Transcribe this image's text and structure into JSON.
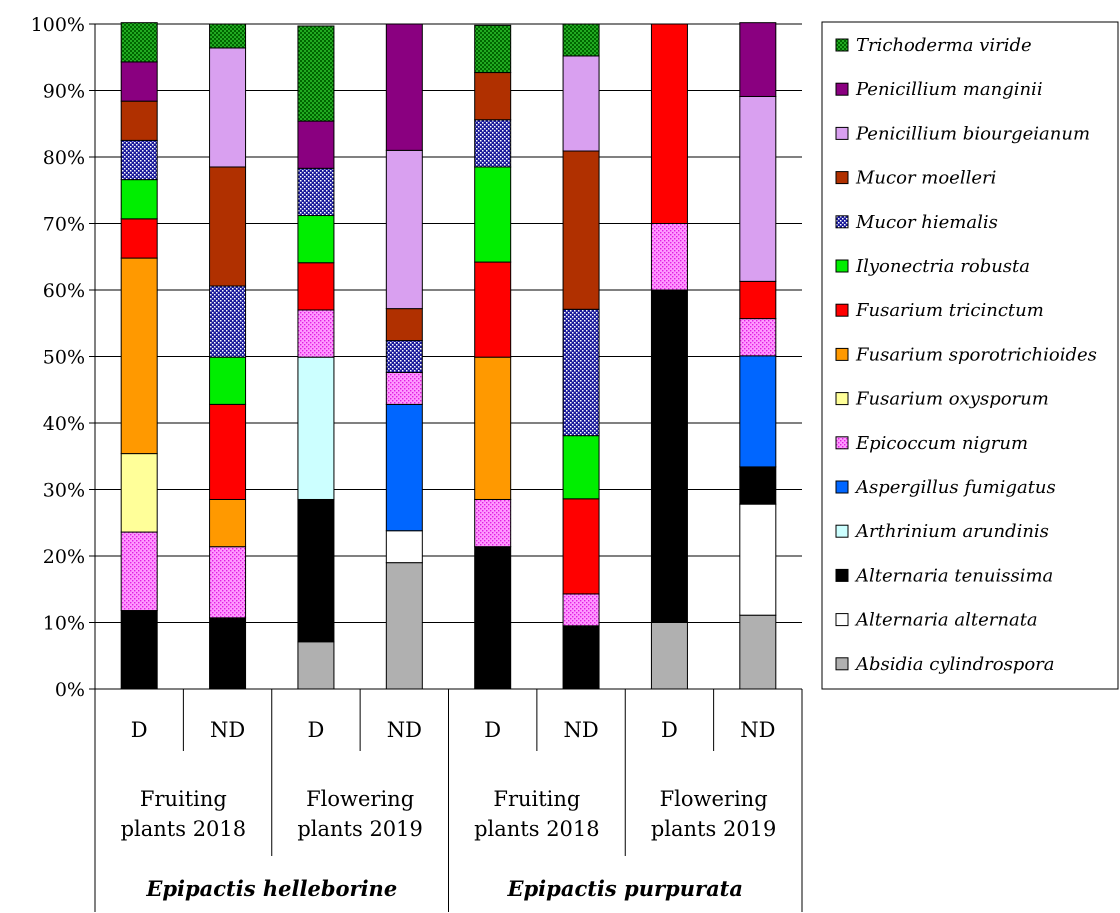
{
  "chart_data": {
    "type": "bar",
    "stacked": true,
    "percent": true,
    "ylim": [
      0,
      100
    ],
    "y_ticks": [
      "0%",
      "10%",
      "20%",
      "30%",
      "40%",
      "50%",
      "60%",
      "70%",
      "80%",
      "90%",
      "100%"
    ],
    "grid": true,
    "legend_position": "right",
    "categories": [
      "D",
      "ND",
      "D",
      "ND",
      "D",
      "ND",
      "D",
      "ND"
    ],
    "groups": [
      {
        "label_line1": "Fruiting",
        "label_line2": "plants 2018"
      },
      {
        "label_line1": "Flowering",
        "label_line2": "plants 2019"
      },
      {
        "label_line1": "Fruiting",
        "label_line2": "plants 2018"
      },
      {
        "label_line1": "Flowering",
        "label_line2": "plants 2019"
      }
    ],
    "species": [
      "Epipactis helleborine",
      "Epipactis purpurata"
    ],
    "series": [
      {
        "name": "Absidia cylindrospora",
        "color": "#b0b0b0",
        "pattern": "solid",
        "values": [
          0,
          0,
          7.1,
          19.0,
          0,
          0,
          10,
          11.1
        ]
      },
      {
        "name": "Alternaria  alternata",
        "color": "#ffffff",
        "pattern": "solid",
        "values": [
          0,
          0,
          0,
          4.8,
          0,
          0,
          0,
          16.7
        ]
      },
      {
        "name": "Alternaria  tenuissima",
        "color": "#000000",
        "pattern": "solid",
        "values": [
          11.8,
          10.7,
          21.4,
          0,
          21.4,
          9.5,
          50,
          5.6
        ]
      },
      {
        "name": "Arthrinium arundinis",
        "color": "#ccffff",
        "pattern": "solid",
        "values": [
          0,
          0,
          21.4,
          0,
          0,
          0,
          0,
          0
        ]
      },
      {
        "name": "Aspergillus fumigatus",
        "color": "#0066ff",
        "pattern": "solid",
        "values": [
          0,
          0,
          0,
          19.0,
          0,
          0,
          0,
          16.7
        ]
      },
      {
        "name": "Epicoccum nigrum",
        "color": "#ff66ff",
        "pattern": "dots",
        "values": [
          11.8,
          10.7,
          7.1,
          4.8,
          7.1,
          4.8,
          10,
          5.6
        ]
      },
      {
        "name": "Fusarium oxysporum",
        "color": "#ffff99",
        "pattern": "solid",
        "values": [
          11.8,
          0,
          0,
          0,
          0,
          0,
          0,
          0
        ]
      },
      {
        "name": "Fusarium  sporotrichioides",
        "color": "#ff9900",
        "pattern": "solid",
        "values": [
          29.4,
          7.1,
          0,
          0,
          21.4,
          0,
          0,
          0
        ]
      },
      {
        "name": "Fusarium tricinctum",
        "color": "#ff0000",
        "pattern": "solid",
        "values": [
          5.9,
          14.3,
          7.1,
          0,
          14.3,
          14.3,
          30,
          5.6
        ]
      },
      {
        "name": "Ilyonectria robusta",
        "color": "#00ee00",
        "pattern": "solid",
        "values": [
          5.9,
          7.1,
          7.1,
          0,
          14.3,
          9.5,
          0,
          0
        ]
      },
      {
        "name": "Mucor hiemalis",
        "color": "#1a1aa0",
        "pattern": "dense",
        "values": [
          5.9,
          10.7,
          7.1,
          4.8,
          7.1,
          19.0,
          0,
          0
        ]
      },
      {
        "name": "Mucor moelleri",
        "color": "#b03000",
        "pattern": "solid",
        "values": [
          5.9,
          17.9,
          0,
          4.8,
          7.1,
          23.8,
          0,
          0
        ]
      },
      {
        "name": "Penicillium biourgeianum",
        "color": "#d9a0f0",
        "pattern": "solid",
        "values": [
          0,
          17.9,
          0,
          23.8,
          0,
          14.3,
          0,
          27.8
        ]
      },
      {
        "name": "Penicillium manginii",
        "color": "#8a0080",
        "pattern": "solid",
        "values": [
          5.9,
          0,
          7.1,
          19.0,
          0,
          0,
          0,
          11.1
        ]
      },
      {
        "name": "Trichoderma viride",
        "color": "#22aa22",
        "pattern": "checker",
        "values": [
          5.9,
          3.6,
          14.3,
          0,
          7.1,
          4.8,
          0,
          0
        ]
      }
    ]
  }
}
